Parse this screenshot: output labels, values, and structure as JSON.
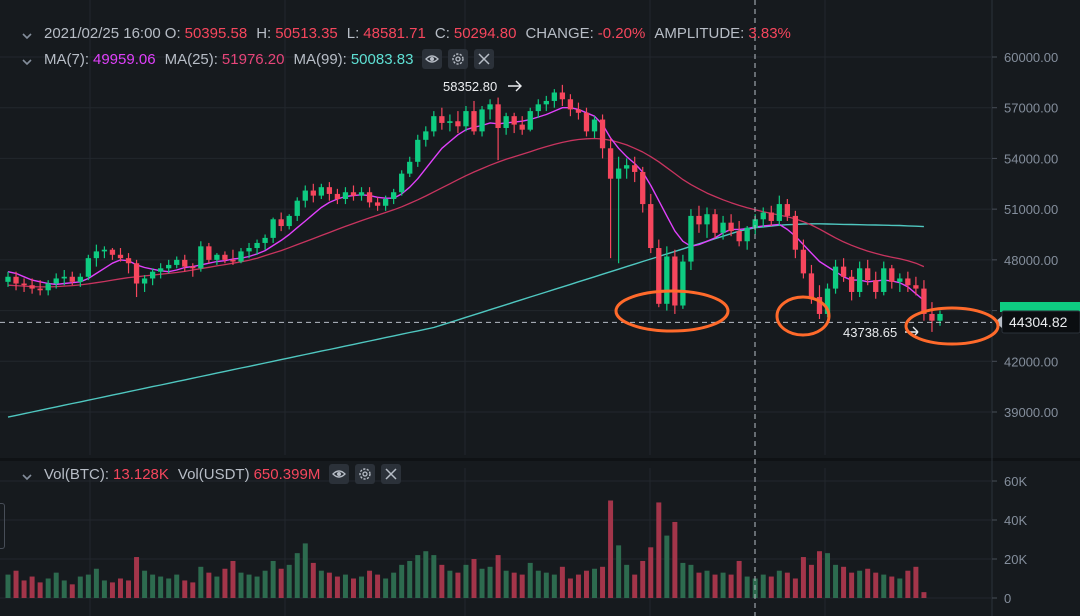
{
  "ohlc_legend": {
    "date": "2021/02/25 16:00",
    "open_label": "O:",
    "open": "50395.58",
    "high_label": "H:",
    "high": "50513.35",
    "low_label": "L:",
    "low": "48581.71",
    "close_label": "C:",
    "close": "50294.80",
    "change_label": "CHANGE:",
    "change": "-0.20%",
    "amplitude_label": "AMPLITUDE:",
    "amplitude": "3.83%"
  },
  "ma_legend": {
    "ma7_label": "MA(7):",
    "ma7": "49959.06",
    "ma25_label": "MA(25):",
    "ma25": "51976.20",
    "ma99_label": "MA(99):",
    "ma99": "50083.83"
  },
  "vol_legend": {
    "btc_label": "Vol(BTC):",
    "btc": "13.128K",
    "usdt_label": "Vol(USDT)",
    "usdt": "650.399M"
  },
  "colors": {
    "background": "#161a1e",
    "up": "#0ecb81",
    "down": "#f6465d",
    "vol_up": "#2d6b4f",
    "vol_down": "#a3354a",
    "ma7": "#e040fb",
    "ma25": "#c8345f",
    "ma99": "#4fc7c0",
    "annotation": "#ff6a2b",
    "grid": "#22272d"
  },
  "icons": [
    "chevron-down-icon",
    "eye-icon",
    "gear-icon",
    "close-icon",
    "arrow-right-icon",
    "arrow-left-icon"
  ],
  "chart_data": [
    {
      "type": "candlestick",
      "y_axis_ticks": [
        "60000.00",
        "57000.00",
        "54000.00",
        "51000.00",
        "48000.00",
        "45000.00",
        "42000.00",
        "39000.00"
      ],
      "ylim": [
        37500,
        61000
      ],
      "current_price_label": "44304.82",
      "annotations": [
        "58352.80",
        "43738.65"
      ],
      "circled_lows": [
        "~45000 support",
        "~44500",
        "~44300 current"
      ],
      "candles": [
        [
          46700,
          47300,
          46400,
          47000
        ],
        [
          47000,
          47300,
          46200,
          46600
        ],
        [
          46600,
          46900,
          46100,
          46500
        ],
        [
          46500,
          46900,
          46000,
          46300
        ],
        [
          46300,
          46800,
          45900,
          46200
        ],
        [
          46200,
          46800,
          45900,
          46600
        ],
        [
          46600,
          47200,
          46300,
          46900
        ],
        [
          46900,
          47400,
          46500,
          47000
        ],
        [
          47000,
          47300,
          46500,
          46700
        ],
        [
          46700,
          47200,
          46400,
          47000
        ],
        [
          47000,
          48300,
          46800,
          48100
        ],
        [
          48100,
          48900,
          47600,
          48500
        ],
        [
          48500,
          48800,
          48100,
          48600
        ],
        [
          48600,
          48700,
          48000,
          48300
        ],
        [
          48300,
          48700,
          47900,
          48100
        ],
        [
          48100,
          48400,
          47200,
          47800
        ],
        [
          47800,
          48000,
          45800,
          46600
        ],
        [
          46600,
          47100,
          46100,
          46900
        ],
        [
          46900,
          47500,
          46500,
          47300
        ],
        [
          47300,
          47800,
          46900,
          47500
        ],
        [
          47500,
          48000,
          47200,
          47700
        ],
        [
          47700,
          48200,
          47500,
          48000
        ],
        [
          48000,
          48300,
          47300,
          47600
        ],
        [
          47600,
          47800,
          47000,
          47500
        ],
        [
          47500,
          49100,
          47300,
          48800
        ],
        [
          48800,
          49000,
          47800,
          48000
        ],
        [
          48000,
          48400,
          47700,
          48300
        ],
        [
          48300,
          48500,
          47800,
          48000
        ],
        [
          48000,
          48600,
          47700,
          47900
        ],
        [
          47900,
          48700,
          47800,
          48500
        ],
        [
          48500,
          49000,
          48100,
          48700
        ],
        [
          48700,
          49200,
          48300,
          49000
        ],
        [
          49000,
          49500,
          48600,
          49300
        ],
        [
          49300,
          50500,
          49000,
          50400
        ],
        [
          50400,
          50800,
          49700,
          50000
        ],
        [
          50000,
          50700,
          49800,
          50600
        ],
        [
          50600,
          51700,
          50300,
          51500
        ],
        [
          51500,
          52400,
          51100,
          52100
        ],
        [
          52100,
          52500,
          51400,
          51800
        ],
        [
          51800,
          52500,
          51600,
          52300
        ],
        [
          52300,
          52600,
          51500,
          51900
        ],
        [
          51900,
          52200,
          51300,
          51600
        ],
        [
          51600,
          52300,
          51300,
          52000
        ],
        [
          52000,
          52400,
          51500,
          51800
        ],
        [
          51800,
          52300,
          51500,
          52000
        ],
        [
          52000,
          52300,
          51100,
          51400
        ],
        [
          51400,
          51700,
          50900,
          51200
        ],
        [
          51200,
          51800,
          50900,
          51600
        ],
        [
          51600,
          52200,
          51300,
          52000
        ],
        [
          52000,
          53300,
          51800,
          53100
        ],
        [
          53100,
          54100,
          52900,
          53800
        ],
        [
          53800,
          55400,
          53500,
          55100
        ],
        [
          55100,
          55900,
          54700,
          55600
        ],
        [
          55600,
          56800,
          55300,
          56500
        ],
        [
          56500,
          57000,
          55700,
          56100
        ],
        [
          56100,
          56600,
          55600,
          56200
        ],
        [
          56200,
          56800,
          55500,
          55900
        ],
        [
          55900,
          57100,
          55600,
          56800
        ],
        [
          56800,
          57400,
          55400,
          55600
        ],
        [
          55600,
          57100,
          55300,
          56900
        ],
        [
          56900,
          57500,
          56300,
          57200
        ],
        [
          57200,
          57600,
          53900,
          55800
        ],
        [
          55800,
          56700,
          55400,
          56500
        ],
        [
          56500,
          56700,
          55500,
          56000
        ],
        [
          56000,
          56500,
          55400,
          55700
        ],
        [
          55700,
          57000,
          55600,
          56800
        ],
        [
          56800,
          57500,
          56400,
          57200
        ],
        [
          57200,
          57700,
          56800,
          57400
        ],
        [
          57400,
          58100,
          57000,
          57900
        ],
        [
          57900,
          58352,
          57100,
          57500
        ],
        [
          57500,
          57800,
          56500,
          56900
        ],
        [
          56900,
          57300,
          56300,
          56700
        ],
        [
          56700,
          57000,
          55300,
          55600
        ],
        [
          55600,
          56500,
          55200,
          56300
        ],
        [
          56300,
          56600,
          54000,
          54600
        ],
        [
          54600,
          55200,
          48100,
          52800
        ],
        [
          52800,
          54100,
          47800,
          53400
        ],
        [
          53400,
          54000,
          52800,
          53600
        ],
        [
          53600,
          54100,
          52600,
          53200
        ],
        [
          53200,
          53500,
          50800,
          51300
        ],
        [
          51300,
          51900,
          48400,
          48700
        ],
        [
          48700,
          49200,
          45200,
          45400
        ],
        [
          45400,
          48800,
          45000,
          48200
        ],
        [
          48200,
          48600,
          44800,
          45300
        ],
        [
          45300,
          48300,
          45100,
          47900
        ],
        [
          47900,
          51000,
          47400,
          50600
        ],
        [
          50600,
          51200,
          49600,
          50100
        ],
        [
          50100,
          51100,
          49300,
          50700
        ],
        [
          50700,
          51000,
          49300,
          49600
        ],
        [
          49600,
          50600,
          49200,
          50200
        ],
        [
          50200,
          50700,
          49400,
          49700
        ],
        [
          49700,
          50300,
          48800,
          49100
        ],
        [
          49100,
          50000,
          48600,
          49900
        ],
        [
          49900,
          50700,
          49500,
          50400
        ],
        [
          50400,
          51100,
          49900,
          50800
        ],
        [
          50800,
          51200,
          50000,
          50300
        ],
        [
          50300,
          51800,
          50000,
          51300
        ],
        [
          51300,
          51600,
          50300,
          50600
        ],
        [
          50600,
          50900,
          48100,
          48600
        ],
        [
          48600,
          49200,
          46900,
          47200
        ],
        [
          47200,
          47700,
          45400,
          45800
        ],
        [
          45800,
          46500,
          44500,
          44800
        ],
        [
          44800,
          46600,
          44600,
          46300
        ],
        [
          46300,
          48000,
          46000,
          47600
        ],
        [
          47600,
          48100,
          46700,
          47000
        ],
        [
          47000,
          47400,
          45600,
          46100
        ],
        [
          46100,
          47900,
          45800,
          47500
        ],
        [
          47500,
          48000,
          46500,
          46800
        ],
        [
          46800,
          47300,
          45700,
          46100
        ],
        [
          46100,
          47900,
          45900,
          47500
        ],
        [
          47500,
          47700,
          46300,
          46700
        ],
        [
          46700,
          47200,
          46100,
          46900
        ],
        [
          46900,
          47300,
          46100,
          46500
        ],
        [
          46500,
          47000,
          45900,
          46300
        ],
        [
          46300,
          46800,
          44400,
          44800
        ],
        [
          44800,
          45500,
          43738,
          44400
        ],
        [
          44400,
          45000,
          44100,
          44800
        ]
      ],
      "ma7_series": [
        47300,
        47200,
        47000,
        46800,
        46700,
        46600,
        46550,
        46600,
        46650,
        46700,
        46900,
        47200,
        47500,
        47800,
        48000,
        47950,
        47700,
        47550,
        47450,
        47350,
        47300,
        47400,
        47550,
        47600,
        47700,
        47800,
        47900,
        47950,
        48050,
        48100,
        48200,
        48350,
        48550,
        48850,
        49150,
        49500,
        49900,
        50300,
        50700,
        51100,
        51400,
        51600,
        51750,
        51800,
        51850,
        51800,
        51700,
        51650,
        51650,
        51900,
        52300,
        52800,
        53400,
        54000,
        54600,
        55000,
        55400,
        55700,
        55850,
        55950,
        56100,
        56050,
        56100,
        56150,
        56200,
        56300,
        56450,
        56600,
        56800,
        57000,
        57000,
        56900,
        56700,
        56500,
        56000,
        55200,
        54600,
        54100,
        53700,
        53200,
        52400,
        51500,
        50600,
        49700,
        49100,
        48800,
        48900,
        49100,
        49300,
        49600,
        49800,
        49800,
        49850,
        49950,
        50000,
        50050,
        50100,
        49800,
        49400,
        48900,
        48400,
        47900,
        47600,
        47300,
        47000,
        46800,
        46800,
        46700,
        46750,
        46800,
        46750,
        46650,
        46400,
        46000,
        45600
      ],
      "ma25_series": [
        46500,
        46480,
        46450,
        46420,
        46400,
        46400,
        46420,
        46450,
        46480,
        46520,
        46580,
        46650,
        46720,
        46800,
        46880,
        46950,
        47000,
        47050,
        47100,
        47150,
        47200,
        47250,
        47320,
        47400,
        47480,
        47560,
        47640,
        47720,
        47800,
        47880,
        47980,
        48100,
        48250,
        48400,
        48550,
        48720,
        48900,
        49080,
        49260,
        49440,
        49620,
        49800,
        49980,
        50150,
        50320,
        50480,
        50640,
        50800,
        50960,
        51140,
        51340,
        51550,
        51780,
        52020,
        52260,
        52500,
        52740,
        52980,
        53200,
        53400,
        53600,
        53780,
        53950,
        54100,
        54250,
        54400,
        54560,
        54700,
        54830,
        54950,
        55050,
        55120,
        55160,
        55180,
        55150,
        55070,
        54950,
        54800,
        54600,
        54380,
        54100,
        53800,
        53450,
        53100,
        52750,
        52450,
        52200,
        51950,
        51750,
        51550,
        51380,
        51220,
        51080,
        50960,
        50850,
        50750,
        50650,
        50550,
        50420,
        50260,
        50060,
        49820,
        49560,
        49300,
        49060,
        48860,
        48680,
        48520,
        48380,
        48260,
        48160,
        48060,
        47950,
        47800,
        47600
      ],
      "ma99_series": [
        38700,
        38800,
        38900,
        39000,
        39100,
        39200,
        39300,
        39400,
        39500,
        39600,
        39700,
        39800,
        39900,
        40000,
        40100,
        40200,
        40300,
        40400,
        40500,
        40600,
        40700,
        40800,
        40900,
        41000,
        41100,
        41200,
        41300,
        41400,
        41500,
        41600,
        41700,
        41800,
        41900,
        42000,
        42100,
        42200,
        42300,
        42400,
        42500,
        42600,
        42700,
        42800,
        42900,
        43000,
        43100,
        43200,
        43300,
        43400,
        43500,
        43600,
        43700,
        43800,
        43900,
        44000,
        44150,
        44300,
        44450,
        44600,
        44750,
        44900,
        45050,
        45200,
        45350,
        45500,
        45650,
        45800,
        45950,
        46100,
        46250,
        46400,
        46550,
        46700,
        46850,
        47000,
        47150,
        47300,
        47450,
        47600,
        47750,
        47900,
        48050,
        48200,
        48350,
        48500,
        48650,
        48800,
        48950,
        49100,
        49250,
        49400,
        49550,
        49700,
        49800,
        49900,
        49950,
        50000,
        50050,
        50080,
        50100,
        50120,
        50130,
        50130,
        50120,
        50110,
        50100,
        50090,
        50080,
        50070,
        50060,
        50050,
        50040,
        50030,
        50010,
        49990,
        49970
      ]
    },
    {
      "type": "bar",
      "title": "Vol(BTC)",
      "y_axis_ticks": [
        "60K",
        "40K",
        "20K",
        "0"
      ],
      "ylim": [
        0,
        62000
      ],
      "values": [
        12000,
        14000,
        9000,
        11000,
        8000,
        10000,
        13000,
        9000,
        7000,
        11000,
        12000,
        15000,
        9000,
        8000,
        10000,
        9000,
        21000,
        14000,
        12000,
        11000,
        10000,
        12000,
        9000,
        8000,
        16000,
        13000,
        11000,
        15000,
        19000,
        13000,
        12000,
        11000,
        14000,
        19000,
        15000,
        17000,
        23000,
        28000,
        18000,
        14000,
        13000,
        11000,
        12000,
        10000,
        11000,
        14000,
        12000,
        10000,
        13000,
        17000,
        19000,
        22000,
        24000,
        22000,
        17000,
        14000,
        13000,
        17000,
        20000,
        15000,
        16000,
        22000,
        14000,
        13000,
        12000,
        18000,
        14000,
        13000,
        12000,
        16000,
        10000,
        12000,
        14000,
        15000,
        16000,
        50000,
        27000,
        17000,
        12000,
        19000,
        26000,
        49000,
        32000,
        39000,
        18000,
        17000,
        13000,
        14000,
        12000,
        13000,
        12000,
        19000,
        11000,
        10000,
        12000,
        11000,
        14000,
        13000,
        10000,
        21000,
        17000,
        24000,
        23000,
        17000,
        16000,
        13000,
        14000,
        15000,
        13000,
        12000,
        11000,
        10000,
        14000,
        16000,
        3000
      ]
    }
  ]
}
